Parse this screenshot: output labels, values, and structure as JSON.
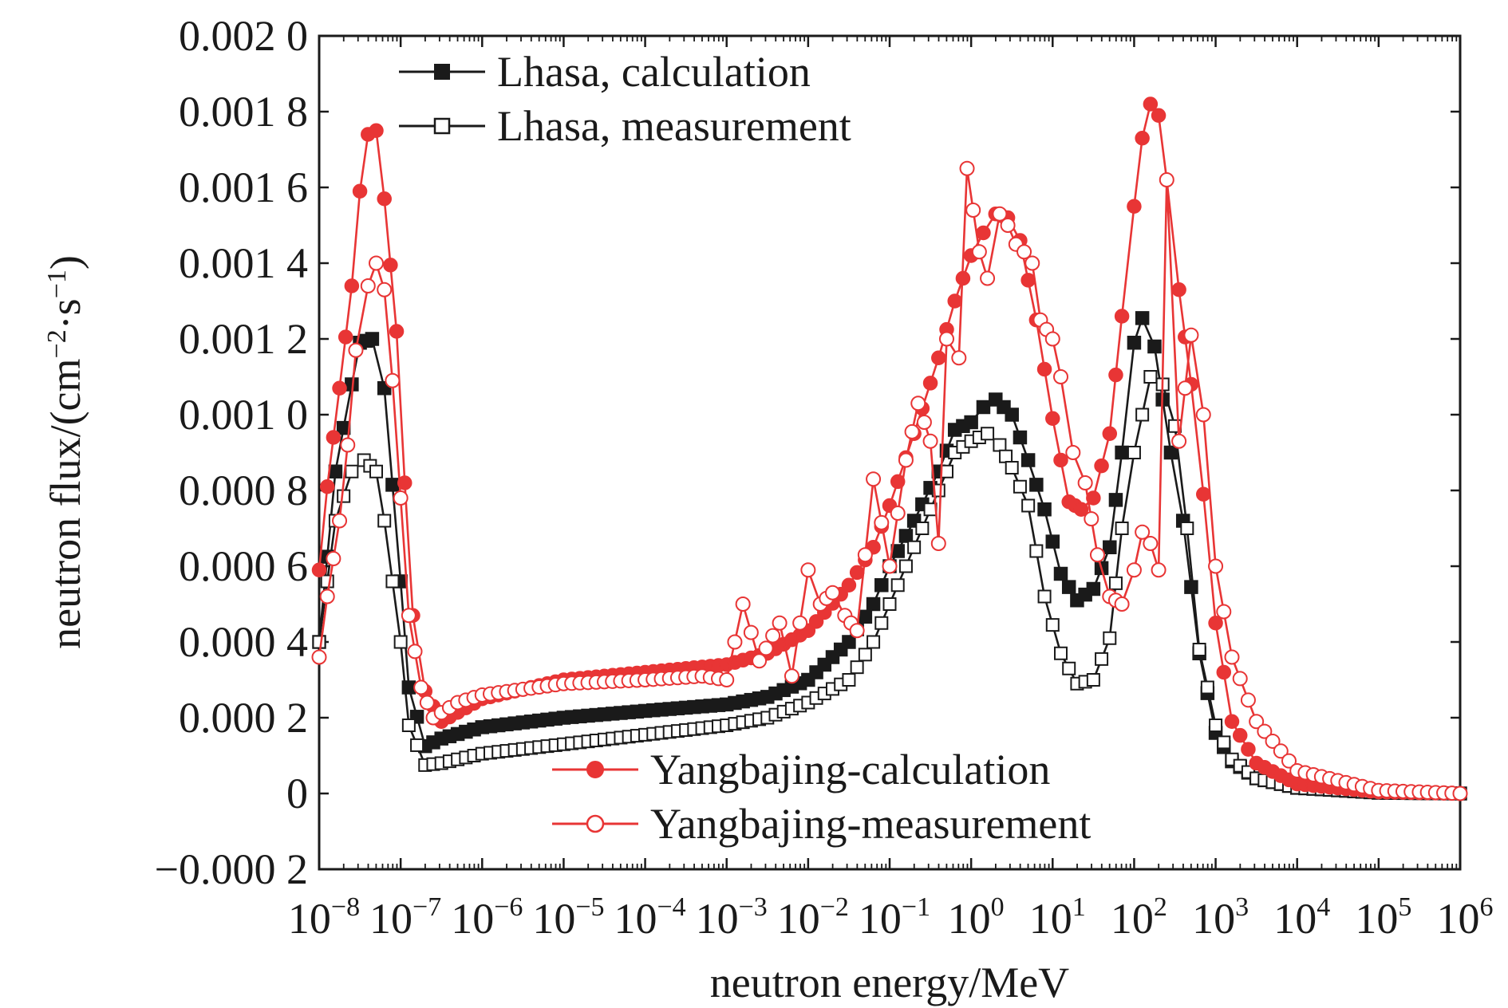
{
  "chart_data": {
    "type": "line",
    "title": "",
    "xlabel": "neutron energy/MeV",
    "ylabel_prefix": "neutron flux/(cm",
    "ylabel_sup1": "−2",
    "ylabel_mid": "·s",
    "ylabel_sup2": "−1",
    "ylabel_suffix": ")",
    "xscale": "log",
    "xlim_exp": [
      -8,
      6
    ],
    "ylim": [
      -0.0002,
      0.002
    ],
    "x_tick_base": "10",
    "x_tick_exponents": [
      "−8",
      "−7",
      "−6",
      "−5",
      "−4",
      "−3",
      "−2",
      "−1",
      "0",
      "1",
      "2",
      "3",
      "4",
      "5",
      "6"
    ],
    "y_ticks": [
      {
        "v": 0.002,
        "label": "0.002 0"
      },
      {
        "v": 0.0018,
        "label": "0.001 8"
      },
      {
        "v": 0.0016,
        "label": "0.001 6"
      },
      {
        "v": 0.0014,
        "label": "0.001 4"
      },
      {
        "v": 0.0012,
        "label": "0.001 2"
      },
      {
        "v": 0.001,
        "label": "0.001 0"
      },
      {
        "v": 0.0008,
        "label": "0.000 8"
      },
      {
        "v": 0.0006,
        "label": "0.000 6"
      },
      {
        "v": 0.0004,
        "label": "0.000 4"
      },
      {
        "v": 0.0002,
        "label": "0.000 2"
      },
      {
        "v": 0,
        "label": "0"
      },
      {
        "v": -0.0002,
        "label": "−0.000 2"
      }
    ],
    "grid": false,
    "legend_top_left": [
      "Lhasa, calculation",
      "Lhasa, measurement"
    ],
    "legend_bottom_center": [
      "Yangbajing-calculation",
      "Yangbajing-measurement"
    ],
    "series": [
      {
        "name": "Lhasa, calculation",
        "color": "#1a1a1a",
        "marker": "filled-square",
        "points": [
          [
            -8,
            0.0004
          ],
          [
            -7.8,
            0.00085
          ],
          [
            -7.6,
            0.00108
          ],
          [
            -7.5,
            0.00119
          ],
          [
            -7.35,
            0.0012
          ],
          [
            -7.2,
            0.00107
          ],
          [
            -7.0,
            0.00056
          ],
          [
            -6.9,
            0.00028
          ],
          [
            -6.7,
            0.000125
          ],
          [
            -6.5,
            0.000145
          ],
          [
            -6.0,
            0.000175
          ],
          [
            -5.0,
            0.0002
          ],
          [
            -4.0,
            0.000218
          ],
          [
            -3.0,
            0.000235
          ],
          [
            -2.5,
            0.000255
          ],
          [
            -2.0,
            0.0003
          ],
          [
            -1.5,
            0.0004
          ],
          [
            -1.2,
            0.0005
          ],
          [
            -1.0,
            0.0006
          ],
          [
            -0.7,
            0.00072
          ],
          [
            -0.4,
            0.00085
          ],
          [
            -0.2,
            0.00096
          ],
          [
            0.0,
            0.00098
          ],
          [
            0.15,
            0.00102
          ],
          [
            0.3,
            0.00104
          ],
          [
            0.5,
            0.001
          ],
          [
            0.7,
            0.00088
          ],
          [
            0.9,
            0.00075
          ],
          [
            1.1,
            0.00058
          ],
          [
            1.3,
            0.00051
          ],
          [
            1.5,
            0.00054
          ],
          [
            1.7,
            0.00065
          ],
          [
            1.85,
            0.0009
          ],
          [
            2.0,
            0.00119
          ],
          [
            2.1,
            0.001255
          ],
          [
            2.25,
            0.00118
          ],
          [
            2.45,
            0.0009
          ],
          [
            2.6,
            0.00072
          ],
          [
            2.8,
            0.00037
          ],
          [
            3.0,
            0.00016
          ],
          [
            3.2,
            8.5e-05
          ],
          [
            3.5,
            4e-05
          ],
          [
            4.0,
            1.5e-05
          ],
          [
            5.0,
            2e-06
          ],
          [
            6.0,
            0.0
          ]
        ]
      },
      {
        "name": "Lhasa, measurement",
        "color": "#1a1a1a",
        "marker": "open-square",
        "points": [
          [
            -8,
            0.0004
          ],
          [
            -7.8,
            0.00072
          ],
          [
            -7.6,
            0.00085
          ],
          [
            -7.45,
            0.00088
          ],
          [
            -7.3,
            0.00085
          ],
          [
            -7.2,
            0.00072
          ],
          [
            -7.0,
            0.0004
          ],
          [
            -6.9,
            0.00018
          ],
          [
            -6.7,
            7.5e-05
          ],
          [
            -6.5,
            8e-05
          ],
          [
            -6.0,
            0.000105
          ],
          [
            -5.0,
            0.00013
          ],
          [
            -4.0,
            0.000155
          ],
          [
            -3.0,
            0.00018
          ],
          [
            -2.5,
            0.0002
          ],
          [
            -2.0,
            0.00024
          ],
          [
            -1.5,
            0.0003
          ],
          [
            -1.2,
            0.0004
          ],
          [
            -1.0,
            0.0005
          ],
          [
            -0.7,
            0.00065
          ],
          [
            -0.4,
            0.0008
          ],
          [
            -0.2,
            0.0009
          ],
          [
            0.0,
            0.00093
          ],
          [
            0.2,
            0.00095
          ],
          [
            0.35,
            0.00092
          ],
          [
            0.5,
            0.00086
          ],
          [
            0.7,
            0.00076
          ],
          [
            0.9,
            0.00052
          ],
          [
            1.1,
            0.00037
          ],
          [
            1.3,
            0.00029
          ],
          [
            1.5,
            0.0003
          ],
          [
            1.7,
            0.00041
          ],
          [
            1.85,
            0.0007
          ],
          [
            2.0,
            0.0009
          ],
          [
            2.1,
            0.001
          ],
          [
            2.2,
            0.0011
          ],
          [
            2.35,
            0.00108
          ],
          [
            2.5,
            0.00097
          ],
          [
            2.65,
            0.0007
          ],
          [
            2.8,
            0.00038
          ],
          [
            3.0,
            0.00018
          ],
          [
            3.2,
            9e-05
          ],
          [
            3.5,
            4e-05
          ],
          [
            4.0,
            1.5e-05
          ],
          [
            5.0,
            2e-06
          ],
          [
            6.0,
            0.0
          ]
        ]
      },
      {
        "name": "Yangbajing-calculation",
        "color": "#e83535",
        "marker": "filled-circle",
        "points": [
          [
            -8,
            0.00059
          ],
          [
            -7.9,
            0.00081
          ],
          [
            -7.75,
            0.00107
          ],
          [
            -7.6,
            0.00134
          ],
          [
            -7.5,
            0.00159
          ],
          [
            -7.4,
            0.00174
          ],
          [
            -7.3,
            0.00175
          ],
          [
            -7.2,
            0.00157
          ],
          [
            -7.05,
            0.00122
          ],
          [
            -6.95,
            0.00082
          ],
          [
            -6.85,
            0.00047
          ],
          [
            -6.7,
            0.00027
          ],
          [
            -6.5,
            0.00019
          ],
          [
            -6.0,
            0.00025
          ],
          [
            -5.0,
            0.0003
          ],
          [
            -4.0,
            0.00032
          ],
          [
            -3.0,
            0.00034
          ],
          [
            -2.5,
            0.00037
          ],
          [
            -2.0,
            0.00043
          ],
          [
            -1.5,
            0.00055
          ],
          [
            -1.2,
            0.00065
          ],
          [
            -1.0,
            0.00076
          ],
          [
            -0.7,
            0.00095
          ],
          [
            -0.4,
            0.00115
          ],
          [
            -0.2,
            0.0013
          ],
          [
            0.0,
            0.00142
          ],
          [
            0.15,
            0.00148
          ],
          [
            0.3,
            0.00153
          ],
          [
            0.45,
            0.00152
          ],
          [
            0.6,
            0.00146
          ],
          [
            0.8,
            0.00125
          ],
          [
            1.0,
            0.00099
          ],
          [
            1.2,
            0.00077
          ],
          [
            1.35,
            0.00075
          ],
          [
            1.5,
            0.00078
          ],
          [
            1.7,
            0.00095
          ],
          [
            1.85,
            0.00126
          ],
          [
            2.0,
            0.00155
          ],
          [
            2.1,
            0.00173
          ],
          [
            2.2,
            0.00182
          ],
          [
            2.3,
            0.00179
          ],
          [
            2.4,
            0.00162
          ],
          [
            2.55,
            0.00133
          ],
          [
            2.7,
            0.00108
          ],
          [
            2.85,
            0.00079
          ],
          [
            3.0,
            0.00045
          ],
          [
            3.2,
            0.00019
          ],
          [
            3.5,
            8e-05
          ],
          [
            4.0,
            2.5e-05
          ],
          [
            5.0,
            4e-06
          ],
          [
            6.0,
            0.0
          ]
        ]
      },
      {
        "name": "Yangbajing-measurement",
        "color": "#e83535",
        "marker": "open-circle",
        "points": [
          [
            -8,
            0.00036
          ],
          [
            -7.9,
            0.00052
          ],
          [
            -7.75,
            0.00072
          ],
          [
            -7.65,
            0.00092
          ],
          [
            -7.55,
            0.00117
          ],
          [
            -7.4,
            0.00134
          ],
          [
            -7.3,
            0.0014
          ],
          [
            -7.2,
            0.00133
          ],
          [
            -7.1,
            0.00109
          ],
          [
            -7.0,
            0.00078
          ],
          [
            -6.9,
            0.00047
          ],
          [
            -6.75,
            0.00028
          ],
          [
            -6.6,
            0.0002
          ],
          [
            -6.3,
            0.00024
          ],
          [
            -6.0,
            0.00026
          ],
          [
            -5.0,
            0.00029
          ],
          [
            -4.0,
            0.0003
          ],
          [
            -3.3,
            0.00031
          ],
          [
            -3.0,
            0.0003
          ],
          [
            -2.8,
            0.0005
          ],
          [
            -2.6,
            0.00035
          ],
          [
            -2.35,
            0.00045
          ],
          [
            -2.2,
            0.00031
          ],
          [
            -2.0,
            0.00059
          ],
          [
            -1.85,
            0.0005
          ],
          [
            -1.7,
            0.00053
          ],
          [
            -1.55,
            0.00047
          ],
          [
            -1.4,
            0.00043
          ],
          [
            -1.2,
            0.00083
          ],
          [
            -1.0,
            0.0006
          ],
          [
            -0.8,
            0.00088
          ],
          [
            -0.65,
            0.00103
          ],
          [
            -0.5,
            0.00093
          ],
          [
            -0.4,
            0.00066
          ],
          [
            -0.3,
            0.0012
          ],
          [
            -0.15,
            0.00115
          ],
          [
            -0.05,
            0.00165
          ],
          [
            0.1,
            0.00143
          ],
          [
            0.2,
            0.00136
          ],
          [
            0.35,
            0.00153
          ],
          [
            0.45,
            0.0015
          ],
          [
            0.55,
            0.00145
          ],
          [
            0.65,
            0.00143
          ],
          [
            0.75,
            0.0014
          ],
          [
            0.85,
            0.00125
          ],
          [
            1.0,
            0.0012
          ],
          [
            1.1,
            0.0011
          ],
          [
            1.25,
            0.0009
          ],
          [
            1.4,
            0.00082
          ],
          [
            1.55,
            0.00063
          ],
          [
            1.7,
            0.00052
          ],
          [
            1.85,
            0.0005
          ],
          [
            2.0,
            0.00059
          ],
          [
            2.1,
            0.00069
          ],
          [
            2.2,
            0.00066
          ],
          [
            2.3,
            0.00059
          ],
          [
            2.4,
            0.00162
          ],
          [
            2.55,
            0.00093
          ],
          [
            2.7,
            0.00121
          ],
          [
            2.85,
            0.001
          ],
          [
            3.0,
            0.0006
          ],
          [
            3.2,
            0.00036
          ],
          [
            3.5,
            0.00019
          ],
          [
            4.0,
            6e-05
          ],
          [
            5.0,
            8e-06
          ],
          [
            6.0,
            0.0
          ]
        ]
      }
    ]
  }
}
